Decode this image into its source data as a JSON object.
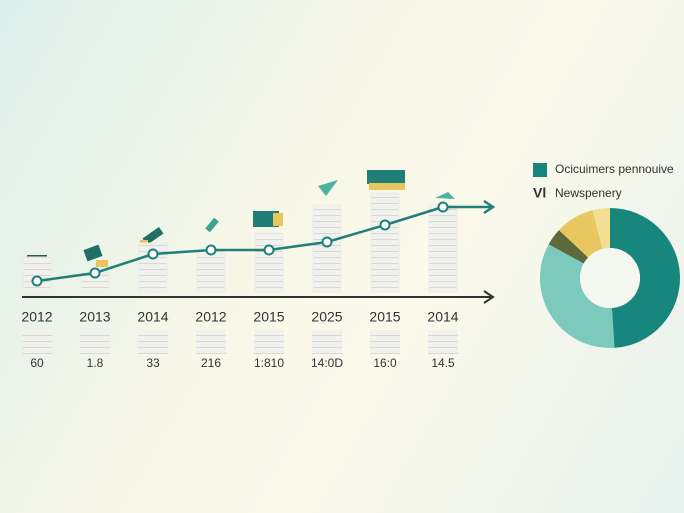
{
  "chart_data": [
    {
      "type": "bar-line",
      "categories": [
        "2012",
        "2013",
        "2014",
        "2012",
        "2015",
        "2025",
        "2015",
        "2014"
      ],
      "bar_values": [
        20,
        12,
        27,
        23,
        32,
        46,
        52,
        46
      ],
      "line_values": [
        8,
        12,
        21.5,
        23.5,
        23.5,
        27.5,
        36,
        45
      ],
      "annotations": [
        "60",
        "1.8",
        "33",
        "216",
        "1:810",
        "14:0D",
        "16:0",
        "14.5"
      ],
      "bar_color": "#ececea",
      "line_color": "#1f8077",
      "ylim": [
        0,
        100
      ]
    },
    {
      "type": "donut",
      "values": [
        49,
        34,
        4,
        9,
        4
      ],
      "colors": [
        "#17877d",
        "#7ccabb",
        "#5b6a3a",
        "#e8c660",
        "#f4de95"
      ],
      "legend": [
        {
          "label": "Ocicuimers pennouive",
          "color": "#17877d"
        },
        {
          "marker": "Vl",
          "label": "Newspenery"
        }
      ]
    }
  ]
}
